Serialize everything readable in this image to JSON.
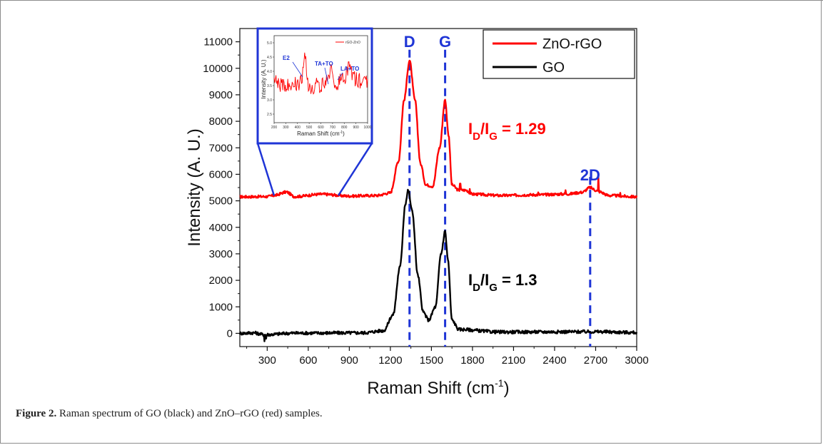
{
  "caption": {
    "label": "Figure 2.",
    "text": " Raman spectrum of GO (black) and ZnO–rGO (red) samples."
  },
  "colors": {
    "zno_rgo": "#ff0000",
    "go": "#000000",
    "annotation": "#1f35d6"
  },
  "chart_data": {
    "type": "line",
    "xlabel": "Raman Shift (cm",
    "xlabel_sup": "-1",
    "xlabel_end": ")",
    "ylabel": "Intensity (A. U.)",
    "xlim": [
      100,
      3000
    ],
    "ylim": [
      -500,
      11500
    ],
    "x_ticks": [
      300,
      600,
      900,
      1200,
      1500,
      1800,
      2100,
      2400,
      2700,
      3000
    ],
    "x_tick_labels": [
      "300",
      "600",
      "900",
      "1200",
      "1500",
      "1800",
      "2100",
      "2400",
      "2700",
      "3000"
    ],
    "y_ticks": [
      0,
      1000,
      2000,
      3000,
      4000,
      5000,
      6000,
      7000,
      8000,
      9000,
      10000,
      11000
    ],
    "y_tick_labels": [
      "0",
      "1000",
      "2000",
      "3000",
      "4000",
      "5000",
      "6000",
      "7000",
      "8000",
      "9000",
      "10000",
      "11000"
    ],
    "legend_position": "top-right",
    "series": [
      {
        "name": "ZnO-rGO",
        "color": "#ff0000",
        "baseline": 5150,
        "noise": 50,
        "points": [
          [
            100,
            5150
          ],
          [
            300,
            5160
          ],
          [
            350,
            5200
          ],
          [
            440,
            5330
          ],
          [
            500,
            5160
          ],
          [
            700,
            5250
          ],
          [
            900,
            5180
          ],
          [
            1100,
            5200
          ],
          [
            1200,
            5300
          ],
          [
            1260,
            6500
          ],
          [
            1300,
            8800
          ],
          [
            1340,
            10300
          ],
          [
            1380,
            8800
          ],
          [
            1420,
            6400
          ],
          [
            1460,
            5600
          ],
          [
            1510,
            5550
          ],
          [
            1560,
            7000
          ],
          [
            1600,
            8800
          ],
          [
            1625,
            7500
          ],
          [
            1650,
            5600
          ],
          [
            1700,
            5400
          ],
          [
            1750,
            5400
          ],
          [
            1800,
            5250
          ],
          [
            2000,
            5200
          ],
          [
            2300,
            5230
          ],
          [
            2500,
            5260
          ],
          [
            2600,
            5320
          ],
          [
            2660,
            5500
          ],
          [
            2700,
            5400
          ],
          [
            2720,
            5350
          ],
          [
            2800,
            5200
          ],
          [
            3000,
            5150
          ]
        ],
        "spikes": [
          [
            440,
            5350
          ],
          [
            1710,
            5650
          ],
          [
            1780,
            5450
          ],
          [
            2280,
            5320
          ],
          [
            2480,
            5400
          ],
          [
            2720,
            5900
          ],
          [
            2880,
            5300
          ]
        ]
      },
      {
        "name": "GO",
        "color": "#000000",
        "baseline": 0,
        "noise": 60,
        "points": [
          [
            100,
            0
          ],
          [
            200,
            20
          ],
          [
            280,
            -50
          ],
          [
            500,
            10
          ],
          [
            1000,
            20
          ],
          [
            1150,
            100
          ],
          [
            1220,
            700
          ],
          [
            1270,
            2500
          ],
          [
            1310,
            4900
          ],
          [
            1330,
            5400
          ],
          [
            1360,
            4600
          ],
          [
            1400,
            2200
          ],
          [
            1440,
            800
          ],
          [
            1480,
            500
          ],
          [
            1530,
            1000
          ],
          [
            1570,
            3000
          ],
          [
            1600,
            3850
          ],
          [
            1620,
            2800
          ],
          [
            1650,
            500
          ],
          [
            1700,
            150
          ],
          [
            2000,
            50
          ],
          [
            2700,
            60
          ],
          [
            3000,
            30
          ]
        ],
        "spikes": [
          [
            280,
            -300
          ],
          [
            290,
            -200
          ]
        ]
      }
    ],
    "vlines": [
      {
        "x": 1340,
        "label": "D",
        "from": -500,
        "to": 10700
      },
      {
        "x": 1600,
        "label": "G",
        "from": -500,
        "to": 10700
      },
      {
        "x": 2660,
        "label": "2D",
        "from": -500,
        "to": 5900
      }
    ],
    "ratio_labels": [
      {
        "series": "ZnO-rGO",
        "main": "I",
        "sub1": "D",
        "slash": "/I",
        "sub2": "G",
        "value": " = 1.29"
      },
      {
        "series": "GO",
        "main": "I",
        "sub1": "D",
        "slash": "/I",
        "sub2": "G",
        "value": " = 1.3"
      }
    ],
    "inset": {
      "xlabel": "Raman Shift (cm",
      "xlabel_sup": "-1",
      "xlabel_end": ")",
      "ylabel": "Intensity (A. U.)",
      "legend": "rGO-ZnO",
      "x_tick_labels": [
        "200",
        "300",
        "400",
        "500",
        "600",
        "700",
        "800",
        "900",
        "1000"
      ],
      "y_tick_labels": [
        "2.5",
        "3.0",
        "3.5",
        "4.0",
        "4.5",
        "5.0"
      ],
      "annotations": [
        "E2",
        "TA+TO",
        "LA+TO"
      ],
      "zoom_range": [
        350,
        820
      ]
    }
  }
}
